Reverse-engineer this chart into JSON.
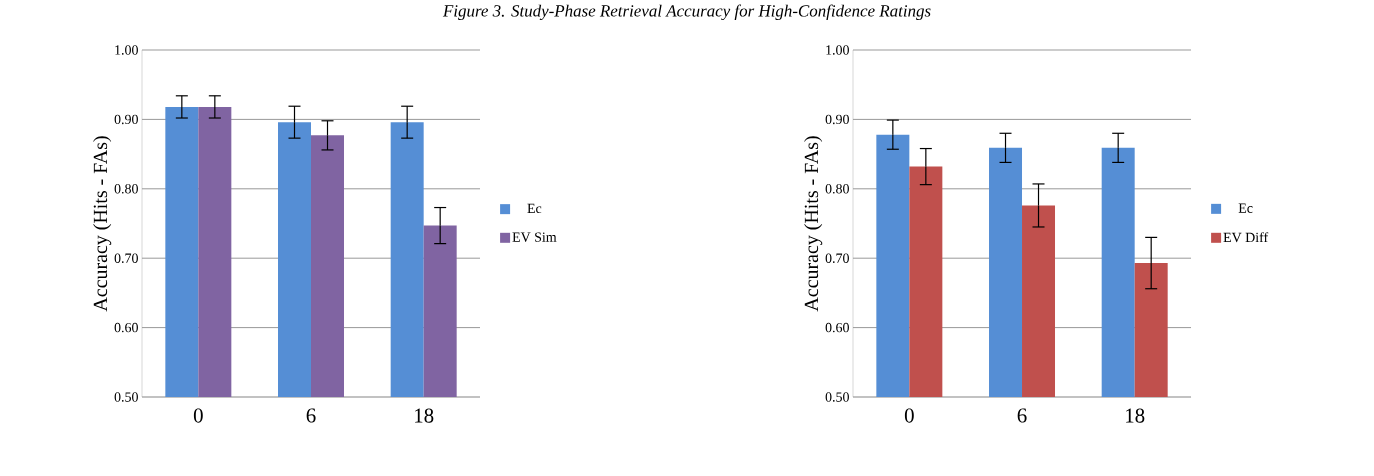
{
  "chart_data": [
    {
      "type": "bar",
      "title": "Figure 3. Study-Phase Retrieval Accuracy for High-Confidence Ratings",
      "categories": [
        "0",
        "6",
        "18"
      ],
      "ylabel": "Accuracy (Hits - FAs)",
      "series": [
        {
          "name": "Ec",
          "color": "#558ed5",
          "values": [
            0.918,
            0.896,
            0.896
          ],
          "errors": [
            0.016,
            0.023,
            0.023
          ]
        },
        {
          "name": "EV Sim",
          "color": "#8064a2",
          "values": [
            0.918,
            0.877,
            0.747
          ],
          "errors": [
            0.016,
            0.021,
            0.026
          ]
        }
      ],
      "ylim": [
        0.5,
        1.0
      ],
      "yticks": [
        {
          "value": 0.5,
          "label": "0.50"
        },
        {
          "value": 0.6,
          "label": "0.60"
        },
        {
          "value": 0.7,
          "label": "0.70"
        },
        {
          "value": 0.8,
          "label": "0.80"
        },
        {
          "value": 0.9,
          "label": "0.90"
        },
        {
          "value": 1.0,
          "label": "1.00"
        }
      ],
      "grid": "y",
      "legend": "right"
    },
    {
      "type": "bar",
      "categories": [
        "0",
        "6",
        "18"
      ],
      "ylabel": "Accuracy (Hits - FAs)",
      "series": [
        {
          "name": "Ec",
          "color": "#558ed5",
          "values": [
            0.878,
            0.859,
            0.859
          ],
          "errors": [
            0.021,
            0.021,
            0.021
          ]
        },
        {
          "name": "EV Diff",
          "color": "#c0504d",
          "values": [
            0.832,
            0.776,
            0.693
          ],
          "errors": [
            0.026,
            0.031,
            0.037
          ]
        }
      ],
      "ylim": [
        0.5,
        1.0
      ],
      "yticks": [
        {
          "value": 0.5,
          "label": "0.50"
        },
        {
          "value": 0.6,
          "label": "0.60"
        },
        {
          "value": 0.7,
          "label": "0.70"
        },
        {
          "value": 0.8,
          "label": "0.80"
        },
        {
          "value": 0.9,
          "label": "0.90"
        },
        {
          "value": 1.0,
          "label": "1.00"
        }
      ],
      "grid": "y",
      "legend": "right"
    }
  ]
}
